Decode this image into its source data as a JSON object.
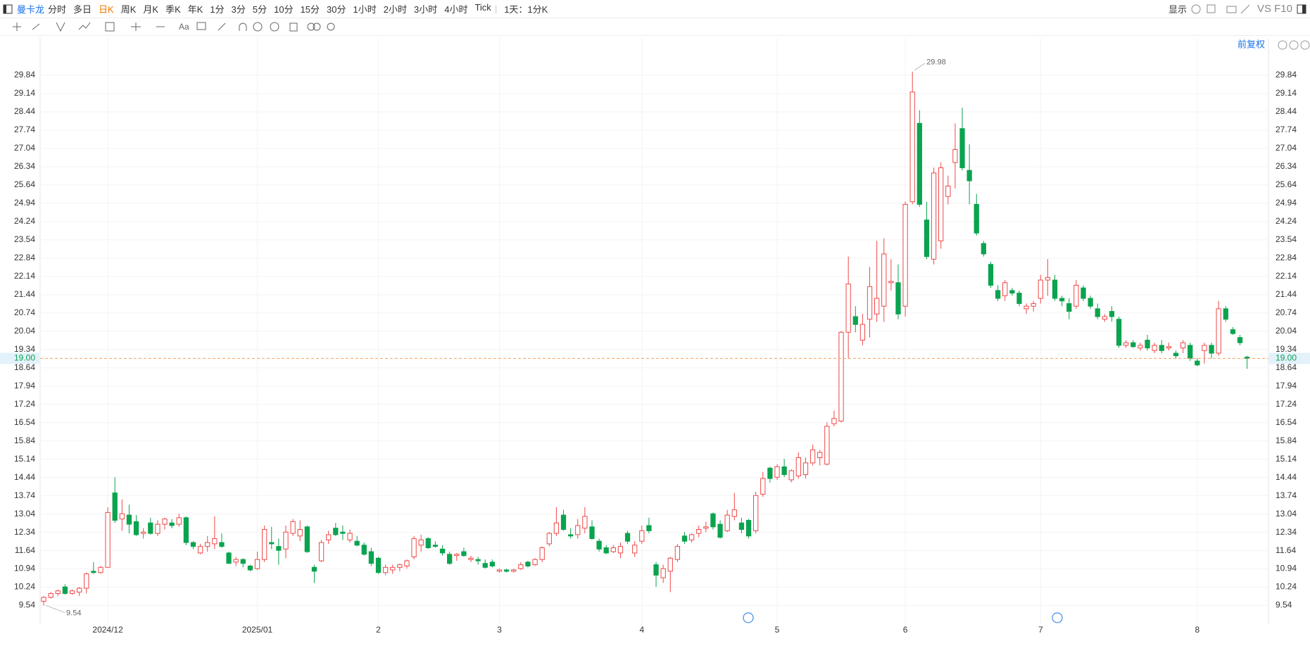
{
  "toolbar": {
    "symbol": "曼卡龙",
    "periods": [
      "分时",
      "多日",
      "日K",
      "周K",
      "月K",
      "季K",
      "年K",
      "1分",
      "3分",
      "5分",
      "10分",
      "15分",
      "30分",
      "1小时",
      "2小时",
      "3小时",
      "4小时",
      "Tick"
    ],
    "active": "日K",
    "period_select": "1天：1分K",
    "display": "显示",
    "vs": "VS F10"
  },
  "chart_data": {
    "type": "candlestick",
    "adjust": "前复权",
    "up_color": "#f04848",
    "down_color": "#0aa34f",
    "grid": true,
    "ylim": [
      8.8,
      30.73
    ],
    "yticks": [
      9.54,
      10.24,
      10.94,
      11.64,
      12.34,
      13.04,
      13.74,
      14.44,
      15.14,
      15.84,
      16.54,
      17.24,
      17.94,
      18.64,
      19.34,
      20.04,
      20.74,
      21.44,
      22.14,
      22.84,
      23.54,
      24.24,
      24.94,
      25.64,
      26.34,
      27.04,
      27.74,
      28.44,
      29.14,
      29.84
    ],
    "last_price": {
      "value": 19.0,
      "label": "19.00"
    },
    "categories": [
      null,
      null,
      null,
      null,
      null,
      null,
      null,
      null,
      null,
      "2024/12",
      null,
      null,
      null,
      null,
      null,
      null,
      null,
      null,
      null,
      null,
      null,
      null,
      null,
      null,
      null,
      null,
      null,
      null,
      null,
      null,
      "2025/01",
      null,
      null,
      null,
      null,
      null,
      null,
      null,
      null,
      null,
      null,
      null,
      null,
      null,
      null,
      null,
      null,
      "2",
      null,
      null,
      null,
      null,
      null,
      null,
      null,
      null,
      null,
      null,
      null,
      null,
      null,
      null,
      null,
      null,
      "3",
      null,
      null,
      null,
      null,
      null,
      null,
      null,
      null,
      null,
      null,
      null,
      null,
      null,
      null,
      null,
      null,
      null,
      null,
      null,
      "4",
      null,
      null,
      null,
      null,
      null,
      null,
      null,
      null,
      null,
      null,
      null,
      null,
      null,
      null,
      null,
      null,
      null,
      null,
      "5",
      null,
      null,
      null,
      null,
      null,
      null,
      null,
      null,
      null,
      null,
      null,
      null,
      null,
      null,
      null,
      null,
      null,
      "6",
      null,
      null,
      null,
      null,
      null,
      null,
      null,
      null,
      null,
      null,
      null,
      null,
      null,
      null,
      null,
      null,
      null,
      null,
      "7",
      null,
      null,
      null,
      null,
      null,
      null,
      null,
      null,
      null,
      null,
      null,
      null,
      null,
      null,
      null,
      null,
      null,
      null,
      null,
      null,
      null,
      "8",
      null,
      null,
      null,
      null,
      null,
      null,
      null
    ],
    "ohlc": [
      [
        9.7,
        9.9,
        9.54,
        9.85
      ],
      [
        9.85,
        10.05,
        9.8,
        10.0
      ],
      [
        10.0,
        10.15,
        9.9,
        10.1
      ],
      [
        10.25,
        10.35,
        9.95,
        10.0
      ],
      [
        10.0,
        10.15,
        9.95,
        10.1
      ],
      [
        10.05,
        10.25,
        9.9,
        10.2
      ],
      [
        10.2,
        10.8,
        10.0,
        10.75
      ],
      [
        10.85,
        11.2,
        10.75,
        10.8
      ],
      [
        10.8,
        11.05,
        10.75,
        11.0
      ],
      [
        11.0,
        13.3,
        11.0,
        13.1
      ],
      [
        13.85,
        14.45,
        12.7,
        12.8
      ],
      [
        12.85,
        13.6,
        12.4,
        13.05
      ],
      [
        13.0,
        13.4,
        12.3,
        12.65
      ],
      [
        12.75,
        13.0,
        12.2,
        12.25
      ],
      [
        12.3,
        12.5,
        12.1,
        12.35
      ],
      [
        12.7,
        12.9,
        12.25,
        12.3
      ],
      [
        12.3,
        12.8,
        12.2,
        12.65
      ],
      [
        12.65,
        12.9,
        12.45,
        12.85
      ],
      [
        12.7,
        12.85,
        12.5,
        12.6
      ],
      [
        12.65,
        13.05,
        12.55,
        12.9
      ],
      [
        12.9,
        12.95,
        11.85,
        11.95
      ],
      [
        11.95,
        12.0,
        11.7,
        11.8
      ],
      [
        11.55,
        11.9,
        11.5,
        11.8
      ],
      [
        11.8,
        12.2,
        11.6,
        11.95
      ],
      [
        11.9,
        12.95,
        11.7,
        12.1
      ],
      [
        11.95,
        12.3,
        11.75,
        11.8
      ],
      [
        11.55,
        11.6,
        11.15,
        11.15
      ],
      [
        11.2,
        11.4,
        11.05,
        11.3
      ],
      [
        11.3,
        11.35,
        11.0,
        11.15
      ],
      [
        11.05,
        11.1,
        10.85,
        10.9
      ],
      [
        10.95,
        11.6,
        10.9,
        11.3
      ],
      [
        11.3,
        12.6,
        11.2,
        12.45
      ],
      [
        11.95,
        12.55,
        11.7,
        11.9
      ],
      [
        11.8,
        12.1,
        11.1,
        11.65
      ],
      [
        11.7,
        12.6,
        11.35,
        12.35
      ],
      [
        12.3,
        12.85,
        12.2,
        12.75
      ],
      [
        12.2,
        12.8,
        12.0,
        12.45
      ],
      [
        12.55,
        12.6,
        11.55,
        11.6
      ],
      [
        11.0,
        11.1,
        10.4,
        10.85
      ],
      [
        11.25,
        12.05,
        11.2,
        11.95
      ],
      [
        12.05,
        12.4,
        11.9,
        12.25
      ],
      [
        12.5,
        12.7,
        12.2,
        12.25
      ],
      [
        12.35,
        12.6,
        12.05,
        12.3
      ],
      [
        12.05,
        12.45,
        11.95,
        12.3
      ],
      [
        12.0,
        12.2,
        11.8,
        11.85
      ],
      [
        11.85,
        11.95,
        11.45,
        11.5
      ],
      [
        11.6,
        11.75,
        11.05,
        11.15
      ],
      [
        11.35,
        11.4,
        10.75,
        10.8
      ],
      [
        10.8,
        11.1,
        10.7,
        11.0
      ],
      [
        10.9,
        11.1,
        10.75,
        11.0
      ],
      [
        11.0,
        11.15,
        10.85,
        11.1
      ],
      [
        11.05,
        11.3,
        10.95,
        11.25
      ],
      [
        11.4,
        12.2,
        11.3,
        12.1
      ],
      [
        11.85,
        12.25,
        11.6,
        12.05
      ],
      [
        12.1,
        12.15,
        11.7,
        11.75
      ],
      [
        11.85,
        12.0,
        11.75,
        11.8
      ],
      [
        11.7,
        11.85,
        11.45,
        11.55
      ],
      [
        11.5,
        11.6,
        11.1,
        11.15
      ],
      [
        11.45,
        11.55,
        11.25,
        11.5
      ],
      [
        11.6,
        11.75,
        11.4,
        11.45
      ],
      [
        11.3,
        11.45,
        11.2,
        11.35
      ],
      [
        11.3,
        11.4,
        11.1,
        11.25
      ],
      [
        11.15,
        11.3,
        10.95,
        11.0
      ],
      [
        11.2,
        11.3,
        11.0,
        11.05
      ],
      [
        10.85,
        10.95,
        10.8,
        10.9
      ],
      [
        10.9,
        10.95,
        10.8,
        10.85
      ],
      [
        10.85,
        10.95,
        10.8,
        10.9
      ],
      [
        10.95,
        11.2,
        10.9,
        11.1
      ],
      [
        11.2,
        11.25,
        11.0,
        11.05
      ],
      [
        11.1,
        11.35,
        11.05,
        11.3
      ],
      [
        11.3,
        11.8,
        11.2,
        11.75
      ],
      [
        11.9,
        12.35,
        11.8,
        12.3
      ],
      [
        12.3,
        13.3,
        12.2,
        12.7
      ],
      [
        13.0,
        13.2,
        12.4,
        12.45
      ],
      [
        12.25,
        12.5,
        12.1,
        12.2
      ],
      [
        12.25,
        12.85,
        12.1,
        12.6
      ],
      [
        12.5,
        13.3,
        12.3,
        12.95
      ],
      [
        12.55,
        12.8,
        12.05,
        12.1
      ],
      [
        12.0,
        12.1,
        11.6,
        11.7
      ],
      [
        11.75,
        11.85,
        11.5,
        11.55
      ],
      [
        11.6,
        11.85,
        11.55,
        11.75
      ],
      [
        11.55,
        11.95,
        11.35,
        11.8
      ],
      [
        12.3,
        12.4,
        11.9,
        12.0
      ],
      [
        11.55,
        12.0,
        11.4,
        11.85
      ],
      [
        12.0,
        12.6,
        11.9,
        12.4
      ],
      [
        12.6,
        12.9,
        12.3,
        12.4
      ],
      [
        11.1,
        11.2,
        10.25,
        10.7
      ],
      [
        10.6,
        11.1,
        10.4,
        10.95
      ],
      [
        10.85,
        11.4,
        10.05,
        11.35
      ],
      [
        11.3,
        11.9,
        11.2,
        11.8
      ],
      [
        12.2,
        12.35,
        11.9,
        12.0
      ],
      [
        12.05,
        12.3,
        11.95,
        12.25
      ],
      [
        12.3,
        12.6,
        12.15,
        12.45
      ],
      [
        12.5,
        12.75,
        12.35,
        12.55
      ],
      [
        13.05,
        13.1,
        12.45,
        12.55
      ],
      [
        12.65,
        12.8,
        12.1,
        12.15
      ],
      [
        12.4,
        13.2,
        12.35,
        13.0
      ],
      [
        12.95,
        13.85,
        12.8,
        13.2
      ],
      [
        12.7,
        12.9,
        12.3,
        12.45
      ],
      [
        12.8,
        12.85,
        12.1,
        12.2
      ],
      [
        12.4,
        13.9,
        12.3,
        13.75
      ],
      [
        13.8,
        14.65,
        13.7,
        14.4
      ],
      [
        14.8,
        14.85,
        14.25,
        14.4
      ],
      [
        14.45,
        14.95,
        14.35,
        14.85
      ],
      [
        14.85,
        15.15,
        14.45,
        14.55
      ],
      [
        14.35,
        14.75,
        14.25,
        14.7
      ],
      [
        14.5,
        15.4,
        14.4,
        15.2
      ],
      [
        14.55,
        15.2,
        14.4,
        15.0
      ],
      [
        15.0,
        15.7,
        14.9,
        15.5
      ],
      [
        15.2,
        15.5,
        14.9,
        15.4
      ],
      [
        14.95,
        16.55,
        14.9,
        16.4
      ],
      [
        16.5,
        17.0,
        16.4,
        16.7
      ],
      [
        16.6,
        20.05,
        16.55,
        20.0
      ],
      [
        20.0,
        22.9,
        19.0,
        21.85
      ],
      [
        20.6,
        21.0,
        20.0,
        20.3
      ],
      [
        19.7,
        20.7,
        19.5,
        20.3
      ],
      [
        20.5,
        22.5,
        19.8,
        21.75
      ],
      [
        20.7,
        23.5,
        20.4,
        21.3
      ],
      [
        21.0,
        23.6,
        20.4,
        23.0
      ],
      [
        21.9,
        22.8,
        21.6,
        21.95
      ],
      [
        21.9,
        22.6,
        20.5,
        20.7
      ],
      [
        21.0,
        25.0,
        20.6,
        24.9
      ],
      [
        25.0,
        29.98,
        24.9,
        29.2
      ],
      [
        28.0,
        28.5,
        24.8,
        24.9
      ],
      [
        24.3,
        25.0,
        22.8,
        22.9
      ],
      [
        22.8,
        26.3,
        22.6,
        26.1
      ],
      [
        23.5,
        26.5,
        23.2,
        26.3
      ],
      [
        25.2,
        26.0,
        24.9,
        25.6
      ],
      [
        26.5,
        28.0,
        25.5,
        27.0
      ],
      [
        27.8,
        28.6,
        26.2,
        26.3
      ],
      [
        26.2,
        27.2,
        24.9,
        25.8
      ],
      [
        24.9,
        25.3,
        23.7,
        23.8
      ],
      [
        23.4,
        23.5,
        22.9,
        23.0
      ],
      [
        22.6,
        22.7,
        21.7,
        21.8
      ],
      [
        21.6,
        21.8,
        21.2,
        21.3
      ],
      [
        21.4,
        22.0,
        21.2,
        21.9
      ],
      [
        21.6,
        21.7,
        21.4,
        21.5
      ],
      [
        21.5,
        21.6,
        21.0,
        21.1
      ],
      [
        20.9,
        21.1,
        20.7,
        21.0
      ],
      [
        21.0,
        21.2,
        20.8,
        21.1
      ],
      [
        21.3,
        22.2,
        21.1,
        22.0
      ],
      [
        22.0,
        22.8,
        21.4,
        22.1
      ],
      [
        22.0,
        22.2,
        21.2,
        21.3
      ],
      [
        21.3,
        21.4,
        21.0,
        21.2
      ],
      [
        21.1,
        21.3,
        20.5,
        20.8
      ],
      [
        21.0,
        22.0,
        20.9,
        21.8
      ],
      [
        21.7,
        21.8,
        21.2,
        21.3
      ],
      [
        21.3,
        21.4,
        20.9,
        21.0
      ],
      [
        20.9,
        21.1,
        20.5,
        20.6
      ],
      [
        20.5,
        20.7,
        20.4,
        20.6
      ],
      [
        20.8,
        21.0,
        20.4,
        20.6
      ],
      [
        20.5,
        20.6,
        19.4,
        19.5
      ],
      [
        19.5,
        19.7,
        19.4,
        19.6
      ],
      [
        19.6,
        19.7,
        19.4,
        19.45
      ],
      [
        19.4,
        19.6,
        19.3,
        19.5
      ],
      [
        19.7,
        19.9,
        19.3,
        19.4
      ],
      [
        19.3,
        19.6,
        19.2,
        19.5
      ],
      [
        19.5,
        19.7,
        19.2,
        19.3
      ],
      [
        19.4,
        19.6,
        19.3,
        19.45
      ],
      [
        19.2,
        19.3,
        19.0,
        19.1
      ],
      [
        19.4,
        19.7,
        19.2,
        19.6
      ],
      [
        19.5,
        19.6,
        18.9,
        19.0
      ],
      [
        18.9,
        19.0,
        18.7,
        18.75
      ],
      [
        19.3,
        19.6,
        18.8,
        19.5
      ],
      [
        19.5,
        19.6,
        19.0,
        19.2
      ],
      [
        19.2,
        21.2,
        19.1,
        20.9
      ],
      [
        20.9,
        21.0,
        20.4,
        20.5
      ],
      [
        20.1,
        20.2,
        19.9,
        19.95
      ],
      [
        19.8,
        19.9,
        19.5,
        19.6
      ],
      [
        19.05,
        19.1,
        18.6,
        19.0
      ]
    ]
  }
}
